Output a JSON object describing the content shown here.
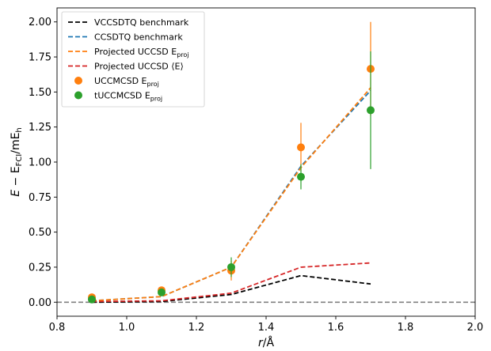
{
  "chart_data": {
    "type": "line",
    "xlabel": "r/Å",
    "ylabel": "E − E_FCI/mE_h",
    "xlim": [
      0.8,
      2.0
    ],
    "ylim": [
      -0.1,
      2.1
    ],
    "xticks": [
      "0.8",
      "1.0",
      "1.2",
      "1.4",
      "1.6",
      "1.8",
      "2.0"
    ],
    "yticks": [
      "0.00",
      "0.25",
      "0.50",
      "0.75",
      "1.00",
      "1.25",
      "1.50",
      "1.75",
      "2.00"
    ],
    "grid": false,
    "legend_position": "top-left",
    "reference_line": {
      "y": 0,
      "color": "#808080",
      "style": "dashed"
    },
    "series": [
      {
        "name": "VCCSDTQ benchmark",
        "kind": "dashed-line",
        "color": "#000000",
        "x": [
          0.9,
          1.1,
          1.3,
          1.5,
          1.7
        ],
        "y": [
          0.0,
          0.005,
          0.055,
          0.19,
          0.13
        ]
      },
      {
        "name": "CCSDTQ benchmark",
        "kind": "dashed-line",
        "color": "#1f77b4",
        "x": [
          0.9,
          1.1,
          1.3,
          1.5,
          1.7
        ],
        "y": [
          0.01,
          0.04,
          0.25,
          0.97,
          1.51
        ]
      },
      {
        "name": "Projected UCCSD E_proj",
        "kind": "dashed-line",
        "color": "#ff7f0e",
        "x": [
          0.9,
          1.1,
          1.3,
          1.5,
          1.7
        ],
        "y": [
          0.01,
          0.04,
          0.25,
          0.96,
          1.53
        ]
      },
      {
        "name": "Projected UCCSD ⟨E⟩",
        "kind": "dashed-line",
        "color": "#d62728",
        "x": [
          0.9,
          1.1,
          1.3,
          1.5,
          1.7
        ],
        "y": [
          0.005,
          0.01,
          0.065,
          0.25,
          0.28
        ]
      },
      {
        "name": "UCCMCSD E_proj",
        "kind": "points",
        "color": "#ff7f0e",
        "x": [
          0.9,
          1.1,
          1.3,
          1.5,
          1.7
        ],
        "y": [
          0.035,
          0.085,
          0.225,
          1.105,
          1.665
        ],
        "err": [
          0.02,
          0.02,
          0.07,
          0.175,
          0.335
        ]
      },
      {
        "name": "tUCCMCSD E_proj",
        "kind": "points",
        "color": "#2ca02c",
        "x": [
          0.9,
          1.1,
          1.3,
          1.5,
          1.7
        ],
        "y": [
          0.02,
          0.07,
          0.25,
          0.895,
          1.37
        ],
        "err": [
          0.015,
          0.02,
          0.07,
          0.09,
          0.42
        ]
      }
    ]
  },
  "legend": [
    {
      "pre": "VCCSDTQ benchmark",
      "sub": "",
      "post": ""
    },
    {
      "pre": "CCSDTQ benchmark",
      "sub": "",
      "post": ""
    },
    {
      "pre": "Projected UCCSD E",
      "sub": "proj",
      "post": ""
    },
    {
      "pre": "Projected UCCSD ⟨E⟩",
      "sub": "",
      "post": ""
    },
    {
      "pre": "UCCMCSD E",
      "sub": "proj",
      "post": ""
    },
    {
      "pre": "tUCCMCSD E",
      "sub": "proj",
      "post": ""
    }
  ],
  "axis_text": {
    "ylabel": {
      "e": "E",
      "minus": " − E",
      "sub1": "FCI",
      "unit": "/mE",
      "sub2": "h"
    },
    "xlabel": {
      "r": "r",
      "unit": "/Å"
    }
  }
}
